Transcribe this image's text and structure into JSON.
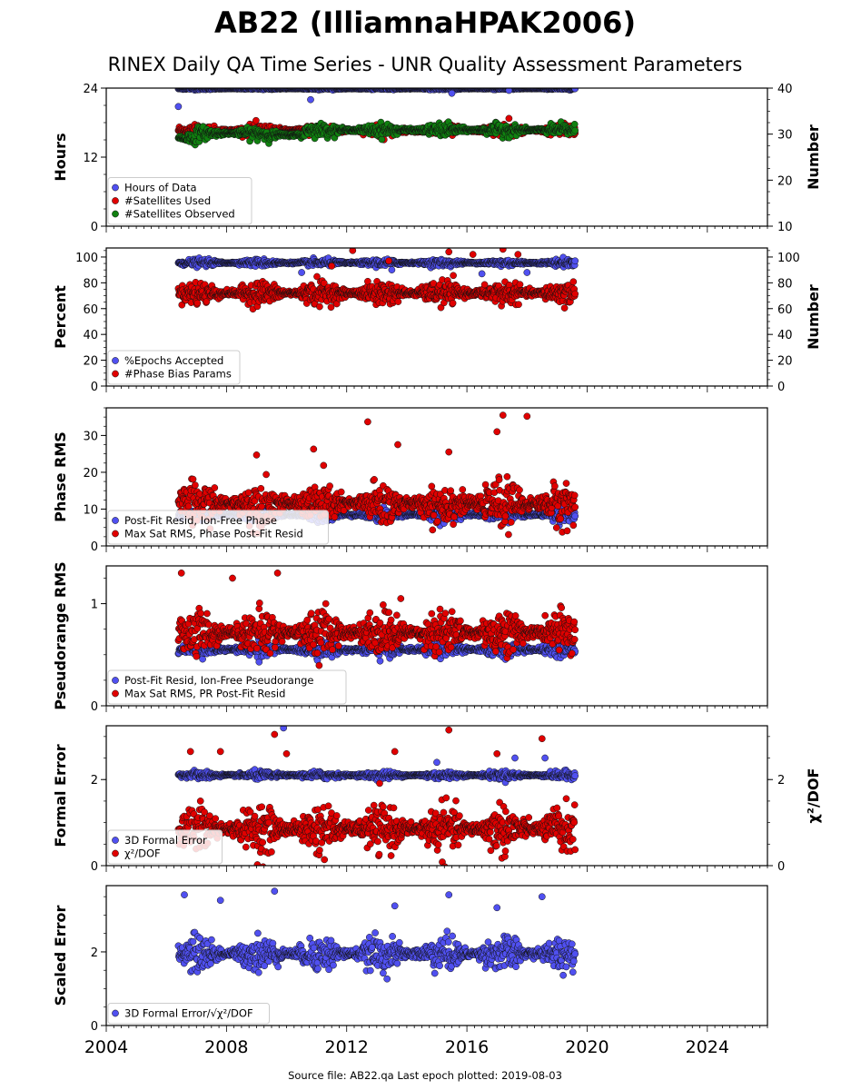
{
  "figure": {
    "title": "AB22 (IlliamnaHPAK2006)",
    "subtitle": "RINEX Daily QA Time Series - UNR Quality Assessment Parameters",
    "footer": "Source file: AB22.qa Last epoch plotted: 2019-08-03"
  },
  "chart_data": [
    {
      "type": "scatter",
      "panel": "hours-satellites",
      "ylabel": "Hours",
      "y2label": "Number",
      "xlim": [
        2004,
        2026
      ],
      "ylim": [
        0,
        24
      ],
      "y2lim": [
        10,
        40
      ],
      "yticks": [
        0,
        12,
        24
      ],
      "y2ticks": [
        10,
        20,
        30,
        40
      ],
      "legend": "lower-left",
      "series": [
        {
          "name": "Hours of Data",
          "color": "#5050f0",
          "axis": "left",
          "x_range": [
            2006.4,
            2019.6
          ],
          "median": 23.9,
          "spread": 0.1,
          "outliers": [
            [
              2006.4,
              20.8
            ],
            [
              2010.8,
              22.0
            ],
            [
              2015.5,
              23.1
            ],
            [
              2017.4,
              23.6
            ]
          ]
        },
        {
          "name": "#Satellites Used",
          "color": "#e00000",
          "axis": "right",
          "x_range": [
            2006.4,
            2019.6
          ],
          "median": 30.8,
          "spread": 0.7,
          "outliers": [
            [
              2009.5,
              30.0
            ],
            [
              2017.4,
              33.4
            ]
          ]
        },
        {
          "name": "#Satellites Observed",
          "color": "#108010",
          "axis": "right",
          "x_range": [
            2006.4,
            2019.6
          ],
          "median": 30.8,
          "spread": 0.7,
          "segments": [
            [
              2006.4,
              2007.0,
              29.2
            ],
            [
              2007.0,
              2009.3,
              30.2
            ],
            [
              2009.3,
              2010.6,
              29.8
            ],
            [
              2010.6,
              2019.6,
              30.9
            ]
          ]
        }
      ]
    },
    {
      "type": "scatter",
      "panel": "percent-phasebias",
      "ylabel": "Percent",
      "y2label": "Number",
      "xlim": [
        2004,
        2026
      ],
      "ylim": [
        0,
        107
      ],
      "y2lim": [
        0,
        107
      ],
      "yticks": [
        0,
        20,
        40,
        60,
        80,
        100
      ],
      "y2ticks": [
        0,
        20,
        40,
        60,
        80,
        100
      ],
      "legend": "lower-left",
      "series": [
        {
          "name": "%Epochs Accepted",
          "color": "#5050f0",
          "axis": "left",
          "x_range": [
            2006.4,
            2019.6
          ],
          "median": 95.5,
          "spread": 1.5,
          "outliers": [
            [
              2010.5,
              88
            ],
            [
              2013.5,
              90
            ],
            [
              2016.5,
              87
            ],
            [
              2018.0,
              88
            ]
          ]
        },
        {
          "name": "#Phase Bias Params",
          "color": "#e00000",
          "axis": "right",
          "x_range": [
            2006.4,
            2019.6
          ],
          "median": 72,
          "spread": 5,
          "outliers": [
            [
              2012.2,
              105
            ],
            [
              2015.4,
              104
            ],
            [
              2016.2,
              102
            ],
            [
              2017.2,
              106
            ],
            [
              2017.7,
              102
            ],
            [
              2013.4,
              97
            ],
            [
              2011.5,
              93
            ]
          ]
        }
      ]
    },
    {
      "type": "scatter",
      "panel": "phase-rms",
      "ylabel": "Phase RMS",
      "xlim": [
        2004,
        2026
      ],
      "ylim": [
        0,
        37.5
      ],
      "yticks": [
        0,
        10,
        20,
        30
      ],
      "legend": "lower-left",
      "series": [
        {
          "name": "Post-Fit Resid, Ion-Free Phase",
          "color": "#5050f0",
          "axis": "left",
          "x_range": [
            2006.4,
            2019.6
          ],
          "median": 8.5,
          "spread": 1.0
        },
        {
          "name": "Max Sat RMS, Phase Post-Fit Resid",
          "color": "#e00000",
          "axis": "left",
          "x_range": [
            2006.4,
            2019.6
          ],
          "median": 11.5,
          "spread": 3.2,
          "outliers": [
            [
              2012.7,
              33.7
            ],
            [
              2017.2,
              35.5
            ],
            [
              2018.0,
              35.2
            ],
            [
              2017.0,
              31.0
            ],
            [
              2013.7,
              27.5
            ],
            [
              2015.4,
              25.5
            ],
            [
              2009.0,
              24.7
            ],
            [
              2010.9,
              26.3
            ]
          ]
        }
      ]
    },
    {
      "type": "scatter",
      "panel": "pseudorange-rms",
      "ylabel": "Pseudorange RMS",
      "xlim": [
        2004,
        2026
      ],
      "ylim": [
        0,
        1.37
      ],
      "yticks": [
        0,
        1
      ],
      "legend": "lower-left",
      "series": [
        {
          "name": "Post-Fit Resid, Ion-Free Pseudorange",
          "color": "#5050f0",
          "axis": "left",
          "x_range": [
            2006.4,
            2019.6
          ],
          "median": 0.55,
          "spread": 0.04
        },
        {
          "name": "Max Sat RMS, PR Post-Fit Resid",
          "color": "#e00000",
          "axis": "left",
          "x_range": [
            2006.4,
            2019.6
          ],
          "median": 0.72,
          "spread": 0.12,
          "outliers": [
            [
              2006.5,
              1.3
            ],
            [
              2009.7,
              1.3
            ],
            [
              2008.2,
              1.25
            ],
            [
              2013.8,
              1.05
            ]
          ]
        }
      ]
    },
    {
      "type": "scatter",
      "panel": "formal-error",
      "ylabel": "Formal Error",
      "y2label": "χ²/DOF",
      "xlim": [
        2004,
        2026
      ],
      "ylim": [
        0,
        3.25
      ],
      "y2lim": [
        0,
        3.25
      ],
      "yticks": [
        0,
        2
      ],
      "y2ticks": [
        0,
        2
      ],
      "legend": "lower-left",
      "series": [
        {
          "name": "3D Formal Error",
          "color": "#5050f0",
          "axis": "left",
          "x_range": [
            2006.4,
            2019.6
          ],
          "median": 2.1,
          "spread": 0.05,
          "outliers": [
            [
              2009.9,
              3.2
            ],
            [
              2015.0,
              2.4
            ],
            [
              2017.6,
              2.5
            ],
            [
              2018.6,
              2.5
            ]
          ]
        },
        {
          "name": "χ²/DOF",
          "color": "#e00000",
          "axis": "right",
          "x_range": [
            2006.4,
            2019.6
          ],
          "median": 0.85,
          "spread": 0.3,
          "outliers": [
            [
              2009.6,
              3.05
            ],
            [
              2015.4,
              3.15
            ],
            [
              2018.5,
              2.95
            ],
            [
              2006.8,
              2.65
            ],
            [
              2007.8,
              2.65
            ],
            [
              2010.0,
              2.6
            ],
            [
              2013.6,
              2.65
            ],
            [
              2017.0,
              2.6
            ]
          ]
        }
      ]
    },
    {
      "type": "scatter",
      "panel": "scaled-error",
      "ylabel": "Scaled Error",
      "xlim": [
        2004,
        2026
      ],
      "ylim": [
        0,
        3.8
      ],
      "yticks": [
        0,
        2
      ],
      "xticks": [
        2004,
        2008,
        2012,
        2016,
        2020,
        2024
      ],
      "legend": "lower-left",
      "series": [
        {
          "name": "3D Formal Error/√χ²/DOF",
          "color": "#5050f0",
          "axis": "left",
          "x_range": [
            2006.4,
            2019.6
          ],
          "median": 1.95,
          "spread": 0.25,
          "outliers": [
            [
              2006.6,
              3.55
            ],
            [
              2009.6,
              3.65
            ],
            [
              2015.4,
              3.55
            ],
            [
              2018.5,
              3.5
            ],
            [
              2007.8,
              3.4
            ],
            [
              2013.6,
              3.25
            ],
            [
              2017.0,
              3.2
            ]
          ]
        }
      ]
    }
  ]
}
